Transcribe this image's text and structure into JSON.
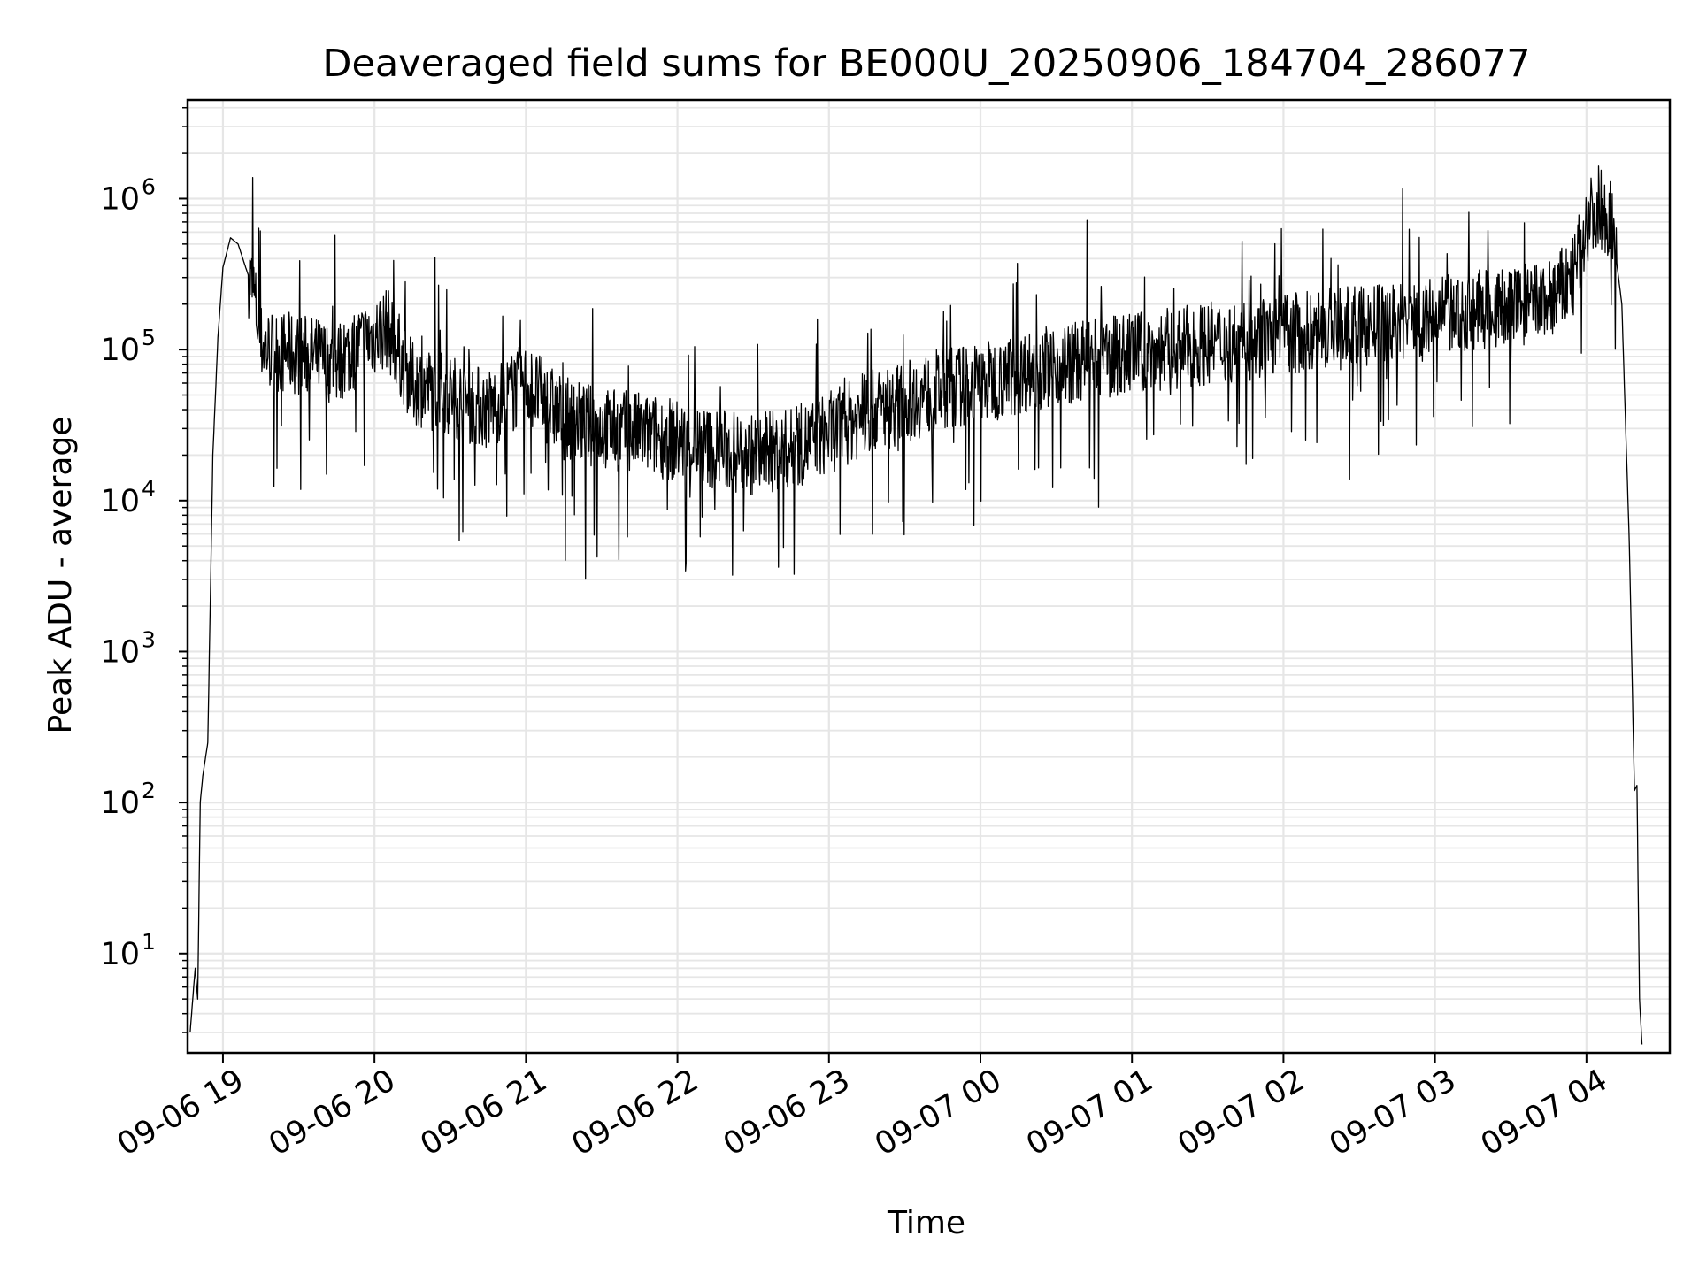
{
  "chart_data": {
    "type": "line",
    "title": "Deaveraged field sums for BE000U_20250906_184704_286077",
    "xlabel": "Time",
    "ylabel": "Peak ADU - average",
    "yscale": "log",
    "ylim": [
      2.2,
      4500000
    ],
    "xlim": [
      "2025-09-06 18:46",
      "2025-09-07 04:33"
    ],
    "x_ticks": [
      "09-06 19",
      "09-06 20",
      "09-06 21",
      "09-06 22",
      "09-06 23",
      "09-07 00",
      "09-07 01",
      "09-07 02",
      "09-07 03",
      "09-07 04"
    ],
    "y_ticks": [
      {
        "base": "10",
        "exp": "1"
      },
      {
        "base": "10",
        "exp": "2"
      },
      {
        "base": "10",
        "exp": "3"
      },
      {
        "base": "10",
        "exp": "4"
      },
      {
        "base": "10",
        "exp": "5"
      },
      {
        "base": "10",
        "exp": "6"
      }
    ],
    "grid": true,
    "line_color": "#000000",
    "grid_color": "#e6e6e6",
    "x": [
      "2025-09-06 18:47",
      "2025-09-06 18:49",
      "2025-09-06 18:50",
      "2025-09-06 18:51",
      "2025-09-06 18:52",
      "2025-09-06 18:54",
      "2025-09-06 18:56",
      "2025-09-06 18:58",
      "2025-09-06 19:00",
      "2025-09-06 19:03",
      "2025-09-06 19:06",
      "2025-09-06 19:09",
      "2025-09-06 19:12",
      "2025-09-06 19:15",
      "2025-09-06 19:18",
      "2025-09-06 19:25",
      "2025-09-06 19:35",
      "2025-09-06 19:45",
      "2025-09-06 19:55",
      "2025-09-06 20:05",
      "2025-09-06 20:15",
      "2025-09-06 20:30",
      "2025-09-06 20:45",
      "2025-09-06 21:00",
      "2025-09-06 21:15",
      "2025-09-06 21:30",
      "2025-09-06 21:45",
      "2025-09-06 22:00",
      "2025-09-06 22:15",
      "2025-09-06 22:30",
      "2025-09-06 22:45",
      "2025-09-06 23:00",
      "2025-09-06 23:15",
      "2025-09-06 23:30",
      "2025-09-06 23:45",
      "2025-09-07 00:00",
      "2025-09-07 00:15",
      "2025-09-07 00:30",
      "2025-09-07 00:45",
      "2025-09-07 01:00",
      "2025-09-07 01:15",
      "2025-09-07 01:30",
      "2025-09-07 01:45",
      "2025-09-07 02:00",
      "2025-09-07 02:15",
      "2025-09-07 02:30",
      "2025-09-07 02:45",
      "2025-09-07 03:00",
      "2025-09-07 03:15",
      "2025-09-07 03:30",
      "2025-09-07 03:45",
      "2025-09-07 03:55",
      "2025-09-07 04:00",
      "2025-09-07 04:05",
      "2025-09-07 04:10",
      "2025-09-07 04:14",
      "2025-09-07 04:17",
      "2025-09-07 04:19",
      "2025-09-07 04:20",
      "2025-09-07 04:21",
      "2025-09-07 04:22"
    ],
    "y": [
      3,
      8,
      5,
      100,
      150,
      250,
      20000,
      120000,
      350000,
      550000,
      500000,
      350000,
      250000,
      110000,
      100000,
      95000,
      90000,
      80000,
      110000,
      140000,
      60000,
      50000,
      40000,
      60000,
      35000,
      30000,
      28000,
      25000,
      22000,
      20000,
      22000,
      28000,
      38000,
      45000,
      55000,
      60000,
      70000,
      80000,
      85000,
      95000,
      100000,
      110000,
      115000,
      125000,
      135000,
      140000,
      150000,
      160000,
      180000,
      190000,
      210000,
      300000,
      700000,
      900000,
      700000,
      200000,
      5000,
      120,
      130,
      5,
      2.5
    ]
  }
}
